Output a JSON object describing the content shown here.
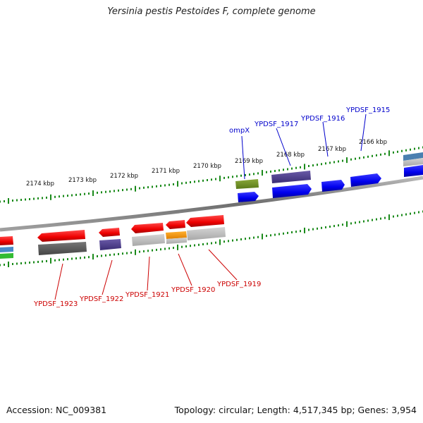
{
  "title": "Yersinia pestis Pestoides F, complete genome",
  "footer": {
    "accession": "Accession: NC_009381",
    "summary": "Topology: circular; Length: 4,517,345 bp; Genes: 3,954"
  },
  "colors": {
    "backbone": "#7a7a7a",
    "ticks": "#1a8a1a",
    "forward_label": "#0000cc",
    "reverse_label": "#cc0000",
    "gene_forward": "#0000ff",
    "gene_reverse": "#ff0000"
  },
  "scale_labels": [
    "2174 kbp",
    "2173 kbp",
    "2172 kbp",
    "2171 kbp",
    "2170 kbp",
    "2169 kbp",
    "2168 kbp",
    "2167 kbp",
    "2166 kbp"
  ],
  "gene_labels": {
    "forward": [
      "ompX",
      "YPDSF_1917",
      "YPDSF_1916",
      "YPDSF_1915"
    ],
    "reverse": [
      "YPDSF_1923",
      "YPDSF_1922",
      "YPDSF_1921",
      "YPDSF_1920",
      "YPDSF_1919"
    ]
  }
}
